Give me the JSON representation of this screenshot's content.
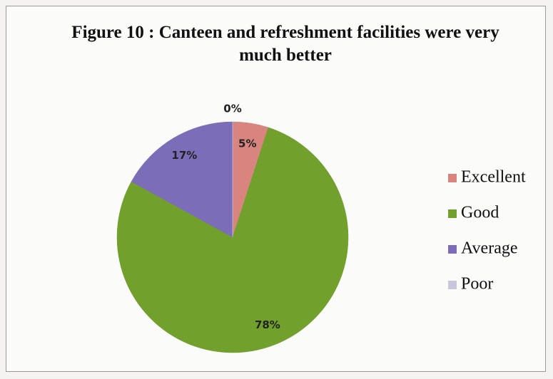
{
  "chart_data": {
    "type": "pie",
    "title": "Figure 10 : Canteen and refreshment facilities were very much better",
    "categories": [
      "Excellent",
      "Good",
      "Average",
      "Poor"
    ],
    "values": [
      5,
      78,
      17,
      0
    ],
    "value_labels": [
      "5%",
      "78%",
      "17%",
      "0%"
    ],
    "colors": [
      "#d8847f",
      "#72a02c",
      "#7b6db8",
      "#c9c5dd"
    ],
    "legend": "right"
  }
}
